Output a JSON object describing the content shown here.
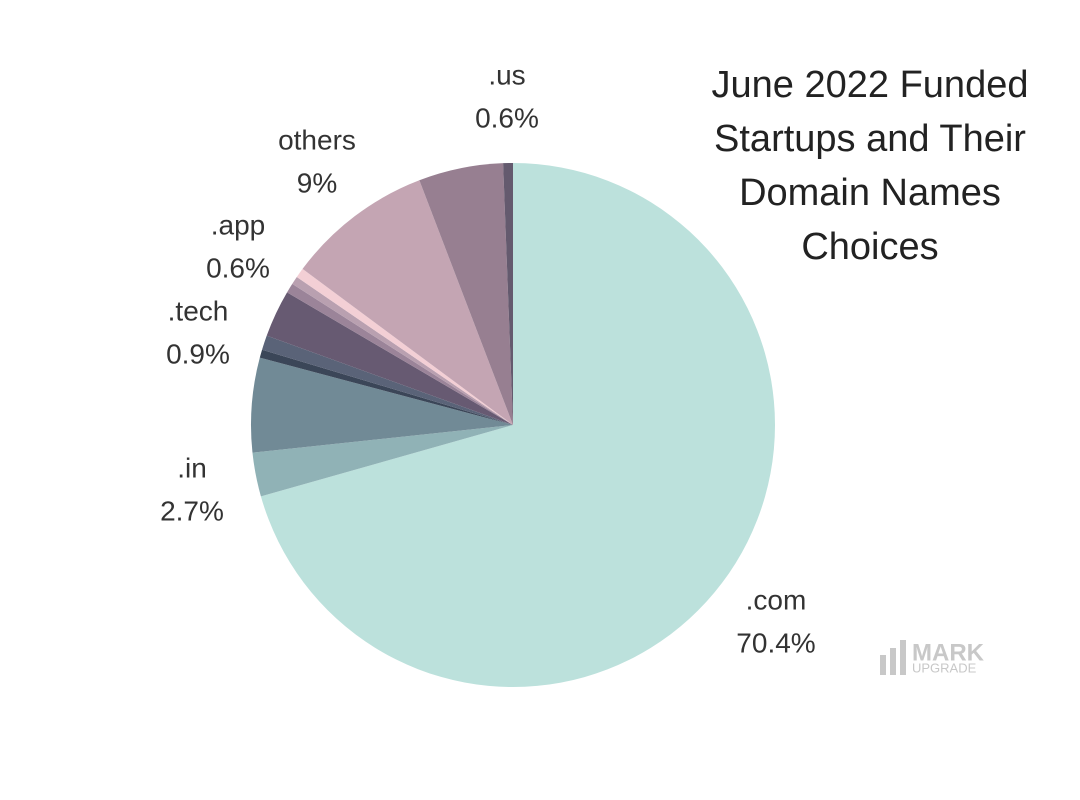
{
  "chart_data": {
    "type": "pie",
    "title": "June 2022 Funded Startups and Their Domain Names Choices",
    "categories": [
      ".com",
      ".in",
      null,
      null,
      ".tech",
      null,
      null,
      null,
      ".app",
      "others",
      null,
      ".us"
    ],
    "values": [
      70.4,
      2.7,
      5.8,
      0.5,
      0.9,
      2.9,
      0.6,
      0.5,
      0.6,
      9,
      5.2,
      0.6
    ],
    "value_labels": [
      "70.4%",
      "2.7%",
      null,
      null,
      "0.9%",
      null,
      null,
      null,
      "0.6%",
      "9%",
      null,
      "0.6%"
    ],
    "colors": [
      "#bce1dc",
      "#90b2b6",
      "#718a96",
      "#3b4658",
      "#5a6378",
      "#675a72",
      "#9b8499",
      "#b9a0b0",
      "#f3cfd5",
      "#c4a5b3",
      "#977f91",
      "#645a6e"
    ],
    "logo": {
      "line1": "MARK",
      "line2": "UPGRADE"
    }
  }
}
